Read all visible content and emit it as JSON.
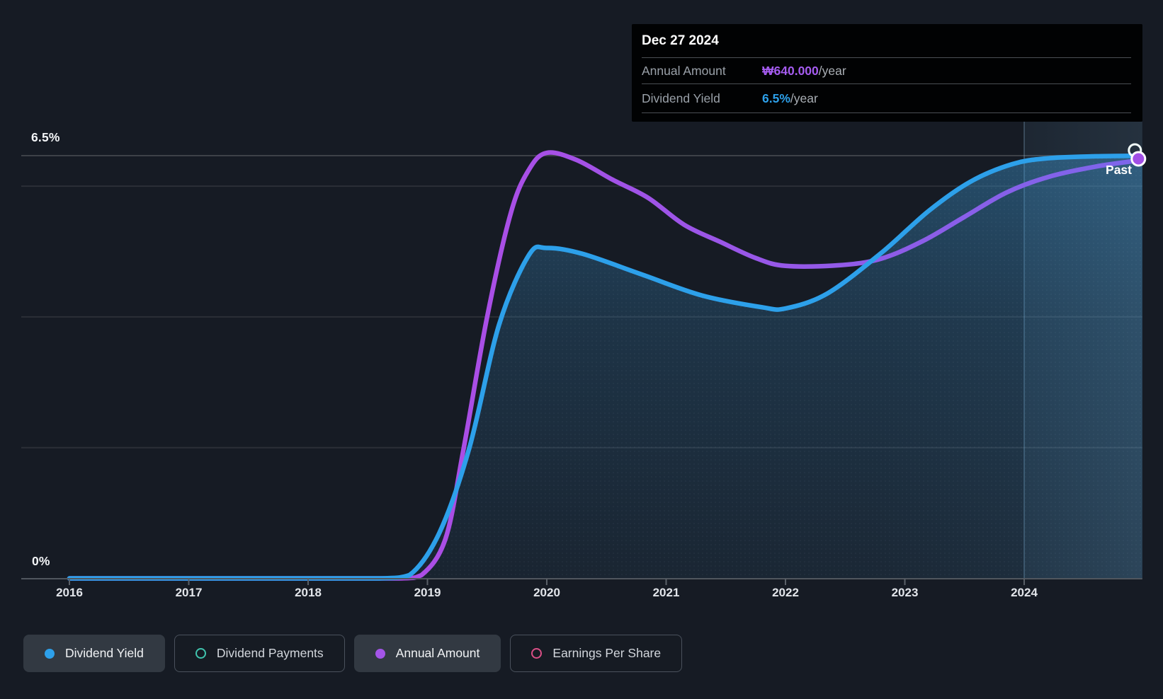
{
  "axis": {
    "y_top_label": "6.5%",
    "y_bottom_label": "0%",
    "x_labels": [
      "2016",
      "2017",
      "2018",
      "2019",
      "2020",
      "2021",
      "2022",
      "2023",
      "2024"
    ]
  },
  "past_label": "Past",
  "tooltip": {
    "date": "Dec 27 2024",
    "rows": [
      {
        "label": "Annual Amount",
        "value": "₩640.000",
        "suffix": "/year",
        "color": "#a55cf0"
      },
      {
        "label": "Dividend Yield",
        "value": "6.5%",
        "suffix": "/year",
        "color": "#2da0ea"
      }
    ]
  },
  "legend": {
    "items": [
      {
        "label": "Dividend Yield",
        "color": "#2da0ea",
        "marker": "filled",
        "active": true
      },
      {
        "label": "Dividend Payments",
        "color": "#40c4ae",
        "marker": "ring",
        "active": false
      },
      {
        "label": "Annual Amount",
        "color": "#a455e8",
        "marker": "filled",
        "active": true
      },
      {
        "label": "Earnings Per Share",
        "color": "#da4f86",
        "marker": "ring",
        "active": false
      }
    ]
  },
  "chart_data": {
    "type": "area",
    "title": "Dividend yield and annual dividend amount over time",
    "x_axis": {
      "unit": "year",
      "ticks": [
        2016,
        2017,
        2018,
        2019,
        2020,
        2021,
        2022,
        2023,
        2024
      ],
      "range": [
        2015.6,
        2025.0
      ]
    },
    "y_axis_yield": {
      "unit": "percent",
      "range": [
        0,
        6.5
      ],
      "top_gridline": 6.5,
      "labels": [
        "0%",
        "6.5%"
      ]
    },
    "y_axis_amount": {
      "unit": "KRW",
      "gridlines": [
        200000,
        400000,
        600000
      ]
    },
    "past_divider_year": 2024.0,
    "legend_position": "bottom",
    "grid": true,
    "series": [
      {
        "name": "Dividend Yield",
        "unit": "percent",
        "color": "#2da0ea",
        "fill": "gradient-area",
        "end_value_label": "6.5%/year",
        "points": [
          [
            2016.0,
            0
          ],
          [
            2017.0,
            0
          ],
          [
            2018.0,
            0
          ],
          [
            2018.6,
            0
          ],
          [
            2018.85,
            0.05
          ],
          [
            2019.1,
            0.7
          ],
          [
            2019.35,
            2.0
          ],
          [
            2019.6,
            3.9
          ],
          [
            2019.85,
            4.97
          ],
          [
            2020.0,
            5.08
          ],
          [
            2020.3,
            4.99
          ],
          [
            2020.8,
            4.67
          ],
          [
            2021.3,
            4.35
          ],
          [
            2021.8,
            4.17
          ],
          [
            2022.0,
            4.15
          ],
          [
            2022.35,
            4.38
          ],
          [
            2022.8,
            5.0
          ],
          [
            2023.2,
            5.65
          ],
          [
            2023.55,
            6.1
          ],
          [
            2023.9,
            6.37
          ],
          [
            2024.2,
            6.46
          ],
          [
            2024.6,
            6.49
          ],
          [
            2024.99,
            6.5
          ]
        ]
      },
      {
        "name": "Annual Amount",
        "unit": "KRW",
        "color": "#a455e8",
        "end_value_label": "₩640.000/year",
        "points": [
          [
            2016.0,
            0
          ],
          [
            2017.0,
            0
          ],
          [
            2018.0,
            0
          ],
          [
            2018.75,
            0
          ],
          [
            2018.95,
            5000
          ],
          [
            2019.15,
            60000
          ],
          [
            2019.3,
            195000
          ],
          [
            2019.5,
            400000
          ],
          [
            2019.7,
            560000
          ],
          [
            2019.85,
            625000
          ],
          [
            2020.0,
            651000
          ],
          [
            2020.25,
            640000
          ],
          [
            2020.55,
            610000
          ],
          [
            2020.85,
            582000
          ],
          [
            2021.15,
            541000
          ],
          [
            2021.45,
            515000
          ],
          [
            2021.75,
            490000
          ],
          [
            2022.0,
            478000
          ],
          [
            2022.45,
            479000
          ],
          [
            2022.8,
            489000
          ],
          [
            2023.15,
            516000
          ],
          [
            2023.5,
            553000
          ],
          [
            2023.85,
            590000
          ],
          [
            2024.2,
            614000
          ],
          [
            2024.6,
            630000
          ],
          [
            2024.99,
            640000
          ]
        ]
      }
    ]
  }
}
